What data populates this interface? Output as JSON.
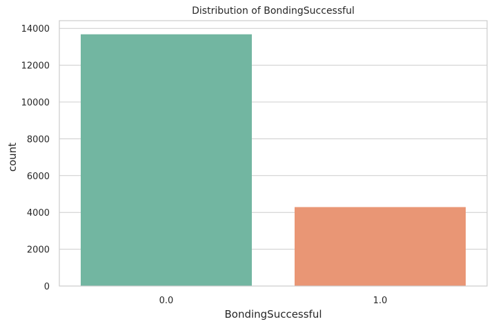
{
  "chart_data": {
    "type": "bar",
    "title": "Distribution of BondingSuccessful",
    "xlabel": "BondingSuccessful",
    "ylabel": "count",
    "categories": [
      "0.0",
      "1.0"
    ],
    "values": [
      13680,
      4290
    ],
    "colors": [
      "#72b6a1",
      "#e99675"
    ],
    "ylim": [
      0,
      14420
    ],
    "yticks": [
      0,
      2000,
      4000,
      6000,
      8000,
      10000,
      12000,
      14000
    ],
    "grid": "y"
  }
}
